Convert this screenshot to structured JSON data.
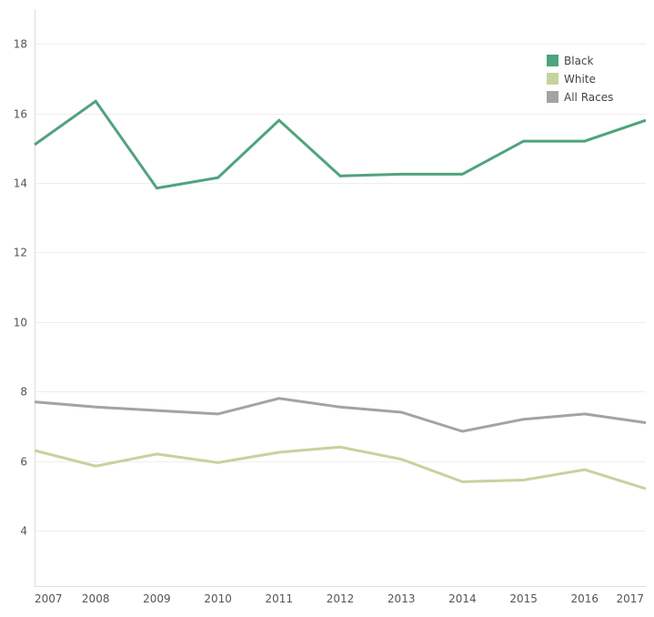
{
  "chart_data": {
    "type": "line",
    "categories": [
      "2007",
      "2008",
      "2009",
      "2010",
      "2011",
      "2012",
      "2013",
      "2014",
      "2015",
      "2016",
      "2017"
    ],
    "series": [
      {
        "name": "Black",
        "color": "#4fa37d",
        "values": [
          15.1,
          16.35,
          13.85,
          14.15,
          15.8,
          14.2,
          14.25,
          14.25,
          15.2,
          15.2,
          15.8
        ]
      },
      {
        "name": "White",
        "color": "#c6d39e",
        "values": [
          6.3,
          5.85,
          6.2,
          5.95,
          6.25,
          6.4,
          6.05,
          5.4,
          5.45,
          5.75,
          5.2
        ]
      },
      {
        "name": "All Races",
        "color": "#a3a3a3",
        "values": [
          7.7,
          7.55,
          7.45,
          7.35,
          7.8,
          7.55,
          7.4,
          6.85,
          7.2,
          7.35,
          7.1
        ]
      }
    ],
    "yticks": [
      "4",
      "6",
      "8",
      "10",
      "12",
      "14",
      "16",
      "18"
    ],
    "ylim": [
      2.4,
      19
    ],
    "grid": true,
    "legend_position": "top-right",
    "title": "",
    "xlabel": "",
    "ylabel": ""
  }
}
